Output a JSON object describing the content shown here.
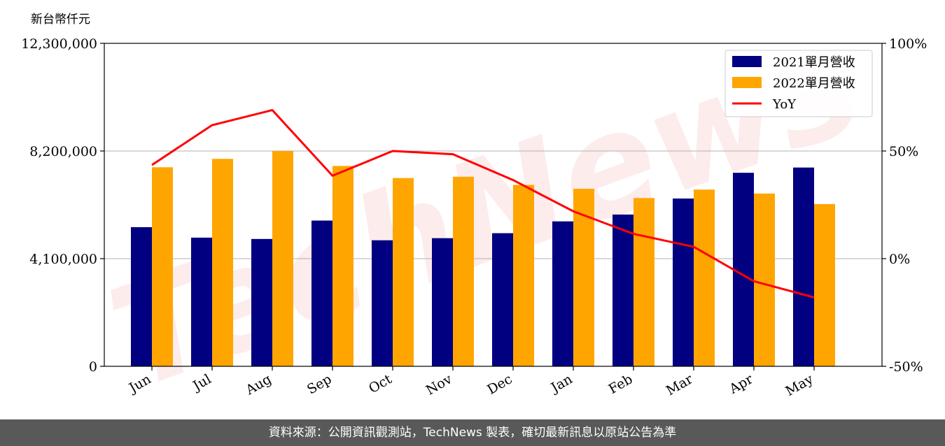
{
  "chart_data": {
    "type": "bar",
    "y_unit_label": "新台幣仟元",
    "categories": [
      "Jun",
      "Jul",
      "Aug",
      "Sep",
      "Oct",
      "Nov",
      "Dec",
      "Jan",
      "Feb",
      "Mar",
      "Apr",
      "May"
    ],
    "series": [
      {
        "name": "2021單月營收",
        "type": "bar",
        "color": "#000080",
        "values": [
          5300000,
          4900000,
          4850000,
          5550000,
          4800000,
          4880000,
          5070000,
          5520000,
          5780000,
          6390000,
          7370000,
          7570000
        ]
      },
      {
        "name": "2022單月營收",
        "type": "bar",
        "color": "#FFA500",
        "values": [
          7580000,
          7900000,
          8200000,
          7630000,
          7170000,
          7220000,
          6910000,
          6760000,
          6410000,
          6730000,
          6580000,
          6180000
        ]
      },
      {
        "name": "YoY",
        "type": "line",
        "axis": "right",
        "color": "#FF0000",
        "values": [
          43.5,
          62.0,
          69.0,
          38.5,
          50.0,
          48.5,
          36.5,
          22.0,
          11.5,
          5.5,
          -10.5,
          -18.0
        ]
      }
    ],
    "y_left": {
      "min": 0,
      "max": 12300000,
      "ticks": [
        0,
        4100000,
        8200000,
        12300000
      ],
      "tick_labels": [
        "0",
        "4,100,000",
        "8,200,000",
        "12,300,000"
      ]
    },
    "y_right": {
      "min": -50,
      "max": 100,
      "ticks": [
        -50,
        0,
        50,
        100
      ],
      "tick_labels": [
        "-50%",
        "0%",
        "50%",
        "100%"
      ]
    },
    "grid": "horizontal",
    "legend_position": "top-right",
    "watermark": "TechNews"
  },
  "footer": {
    "source_text": "資料來源：公開資訊觀測站，TechNews 製表，確切最新訊息以原站公告為準"
  }
}
